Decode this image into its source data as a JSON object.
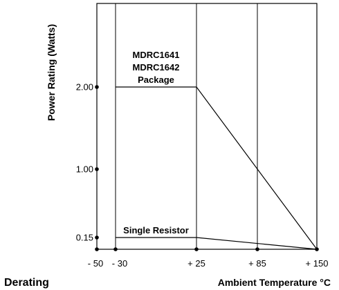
{
  "chart_data": {
    "type": "line",
    "title": "Derating",
    "xlabel": "Ambient Temperature °C",
    "ylabel": "Power Rating (Watts)",
    "xlim": [
      -50,
      150
    ],
    "ylim": [
      0,
      2.7
    ],
    "x_ticks": [
      {
        "value": -50,
        "label": "- 50"
      },
      {
        "value": -30,
        "label": "- 30"
      },
      {
        "value": 25,
        "label": "+ 25"
      },
      {
        "value": 85,
        "label": "+ 85"
      },
      {
        "value": 150,
        "label": "+ 150"
      }
    ],
    "y_ticks": [
      {
        "value": 2.0,
        "label": "2.00"
      },
      {
        "value": 1.0,
        "label": "1.00"
      },
      {
        "value": 0.15,
        "label": "0.15"
      }
    ],
    "vertical_gridlines": [
      -30,
      25,
      85
    ],
    "series": [
      {
        "name": "MDRC1641 MDRC1642 Package",
        "label_lines": [
          "MDRC1641",
          "MDRC1642",
          "Package"
        ],
        "x": [
          -30,
          25,
          150
        ],
        "y": [
          2.0,
          2.0,
          0
        ]
      },
      {
        "name": "Single Resistor",
        "label_lines": [
          "Single Resistor"
        ],
        "x": [
          -30,
          25,
          150
        ],
        "y": [
          0.15,
          0.15,
          0
        ]
      }
    ]
  }
}
